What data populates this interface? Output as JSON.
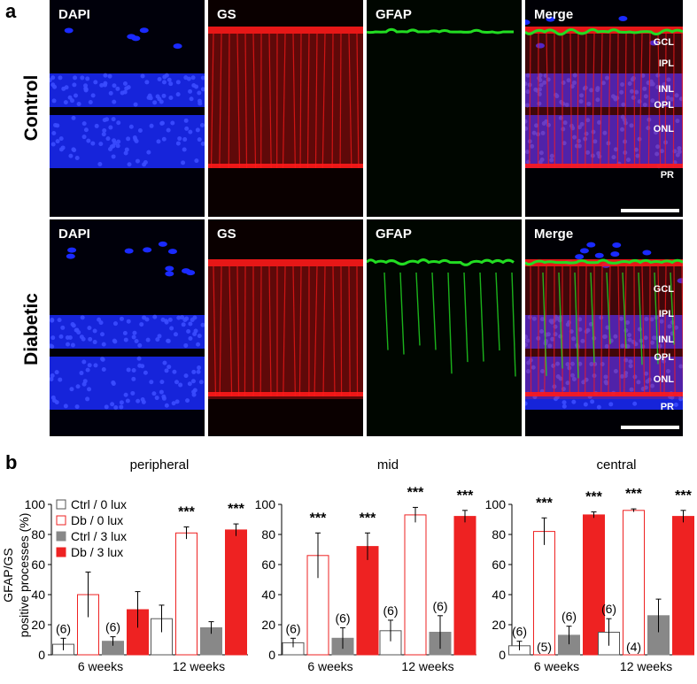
{
  "panel_a": {
    "label": "a",
    "rows": [
      {
        "name": "Control",
        "channels": [
          "DAPI",
          "GS",
          "GFAP",
          "Merge"
        ],
        "layers": [
          "GCL",
          "IPL",
          "INL",
          "OPL",
          "ONL",
          "PR"
        ]
      },
      {
        "name": "Diabetic",
        "channels": [
          "DAPI",
          "GS",
          "GFAP",
          "Merge"
        ],
        "layers": [
          "GCL",
          "IPL",
          "INL",
          "OPL",
          "ONL",
          "PR"
        ]
      }
    ],
    "colors": {
      "DAPI": "#1a2aff",
      "GS": "#ff1a1a",
      "GFAP": "#22dd22",
      "background": "#000000"
    }
  },
  "panel_b": {
    "label": "b",
    "ylabel_line1": "GFAP/GS",
    "ylabel_line2": "positive processes (%)",
    "legend": [
      {
        "name": "Ctrl / 0 lux",
        "fill": "#ffffff",
        "stroke": "#555555"
      },
      {
        "name": "Db / 0 lux",
        "fill": "#ffffff",
        "stroke": "#ee2222"
      },
      {
        "name": "Ctrl / 3 lux",
        "fill": "#888888",
        "stroke": "#888888"
      },
      {
        "name": "Db / 3 lux",
        "fill": "#ee2222",
        "stroke": "#ee2222"
      }
    ]
  },
  "chart_data": [
    {
      "type": "bar",
      "title": "peripheral",
      "categories": [
        "6 weeks",
        "12 weeks"
      ],
      "ylim": [
        0,
        100
      ],
      "yticks": [
        "0",
        "20",
        "40",
        "60",
        "80",
        "100"
      ],
      "series": [
        {
          "name": "Ctrl / 0 lux",
          "values": [
            7,
            24
          ],
          "errors": [
            4,
            9
          ],
          "n": [
            "(6)",
            ""
          ]
        },
        {
          "name": "Db / 0 lux",
          "values": [
            40,
            81
          ],
          "errors": [
            15,
            4
          ],
          "n": [
            "",
            ""
          ],
          "sig": [
            "",
            "***"
          ]
        },
        {
          "name": "Ctrl / 3 lux",
          "values": [
            9,
            18
          ],
          "errors": [
            3,
            4
          ],
          "n": [
            "(6)",
            ""
          ]
        },
        {
          "name": "Db / 3 lux",
          "values": [
            30,
            83
          ],
          "errors": [
            12,
            4
          ],
          "n": [
            "",
            ""
          ],
          "sig": [
            "",
            "***"
          ]
        }
      ]
    },
    {
      "type": "bar",
      "title": "mid",
      "categories": [
        "6 weeks",
        "12 weeks"
      ],
      "ylim": [
        0,
        100
      ],
      "yticks": [
        "0",
        "20",
        "40",
        "60",
        "80",
        "100"
      ],
      "series": [
        {
          "name": "Ctrl / 0 lux",
          "values": [
            8,
            16
          ],
          "errors": [
            3,
            7
          ],
          "n": [
            "(6)",
            "(6)"
          ]
        },
        {
          "name": "Db / 0 lux",
          "values": [
            66,
            93
          ],
          "errors": [
            15,
            5
          ],
          "n": [
            "",
            ""
          ],
          "sig": [
            "***",
            "***"
          ]
        },
        {
          "name": "Ctrl / 3 lux",
          "values": [
            11,
            15
          ],
          "errors": [
            7,
            11
          ],
          "n": [
            "(6)",
            "(6)"
          ]
        },
        {
          "name": "Db / 3 lux",
          "values": [
            72,
            92
          ],
          "errors": [
            9,
            4
          ],
          "n": [
            "",
            ""
          ],
          "sig": [
            "***",
            "***"
          ]
        }
      ]
    },
    {
      "type": "bar",
      "title": "central",
      "categories": [
        "6 weeks",
        "12 weeks"
      ],
      "ylim": [
        0,
        100
      ],
      "yticks": [
        "0",
        "20",
        "40",
        "60",
        "80",
        "100"
      ],
      "series": [
        {
          "name": "Ctrl / 0 lux",
          "values": [
            6,
            15
          ],
          "errors": [
            3,
            9
          ],
          "n": [
            "(6)",
            "(6)"
          ]
        },
        {
          "name": "Db / 0 lux",
          "values": [
            82,
            96
          ],
          "errors": [
            9,
            1
          ],
          "n": [
            "(5)",
            "(4)"
          ],
          "sig": [
            "***",
            "***"
          ]
        },
        {
          "name": "Ctrl / 3 lux",
          "values": [
            13,
            26
          ],
          "errors": [
            6,
            11
          ],
          "n": [
            "(6)",
            ""
          ]
        },
        {
          "name": "Db / 3 lux",
          "values": [
            93,
            92
          ],
          "errors": [
            2,
            4
          ],
          "n": [
            "",
            ""
          ],
          "sig": [
            "***",
            "***"
          ]
        }
      ]
    }
  ]
}
